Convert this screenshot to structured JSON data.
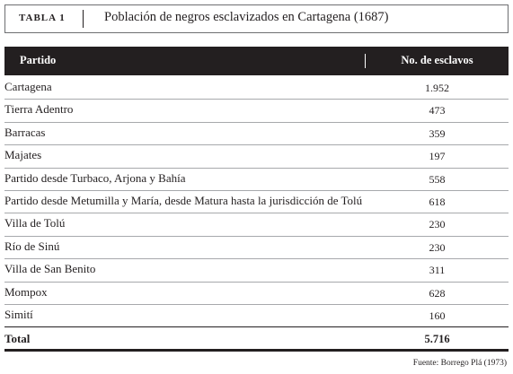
{
  "table_label": "TABLA 1",
  "title": "Población de negros esclavizados en Cartagena (1687)",
  "columns": {
    "partido": "Partido",
    "count": "No. de esclavos"
  },
  "rows": [
    {
      "partido": "Cartagena",
      "count": "1.952"
    },
    {
      "partido": "Tierra Adentro",
      "count": "473"
    },
    {
      "partido": "Barracas",
      "count": "359"
    },
    {
      "partido": "Majates",
      "count": "197"
    },
    {
      "partido": "Partido desde Turbaco, Arjona y Bahía",
      "count": "558"
    },
    {
      "partido": "Partido desde Metumilla y María, desde Matura hasta la jurisdicción de Tolú",
      "count": "618"
    },
    {
      "partido": "Villa de Tolú",
      "count": "230"
    },
    {
      "partido": "Río de Sinú",
      "count": "230"
    },
    {
      "partido": "Villa de San Benito",
      "count": "311"
    },
    {
      "partido": "Mompox",
      "count": "628"
    },
    {
      "partido": "Simití",
      "count": "160"
    }
  ],
  "total": {
    "label": "Total",
    "count": "5.716"
  },
  "source": "Fuente: Borrego Plá (1973)"
}
